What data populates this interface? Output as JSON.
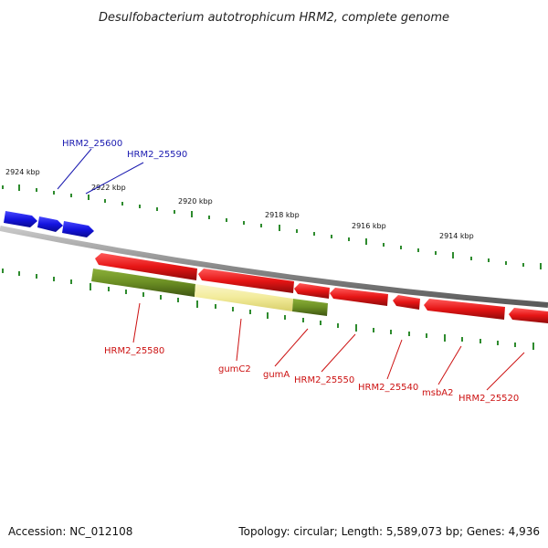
{
  "title": "Desulfobacterium autotrophicum HRM2, complete genome",
  "footer": {
    "accession": "Accession: NC_012108",
    "summary": "Topology: circular; Length: 5,589,073 bp; Genes: 4,936"
  },
  "kbp_labels": [
    "2924 kbp",
    "2922 kbp",
    "2920 kbp",
    "2918 kbp",
    "2916 kbp",
    "2914 kbp"
  ],
  "gene_labels": [
    {
      "text": "HRM2_25600",
      "color": "#1a1ab0"
    },
    {
      "text": "HRM2_25590",
      "color": "#1a1ab0"
    },
    {
      "text": "HRM2_25580",
      "color": "#cc1111"
    },
    {
      "text": "gumC2",
      "color": "#cc1111"
    },
    {
      "text": "gumA",
      "color": "#cc1111"
    },
    {
      "text": "HRM2_25550",
      "color": "#cc1111"
    },
    {
      "text": "HRM2_25540",
      "color": "#cc1111"
    },
    {
      "text": "msbA2",
      "color": "#cc1111"
    },
    {
      "text": "HRM2_25520",
      "color": "#cc1111"
    }
  ],
  "colors": {
    "forward_gene": "#1a1ae6",
    "reverse_gene": "#e61515",
    "highlight_dark": "#6b8e23",
    "highlight_light": "#f2eb9a",
    "backbone": "#8a8a8a",
    "tick": "#2e8b2e"
  }
}
